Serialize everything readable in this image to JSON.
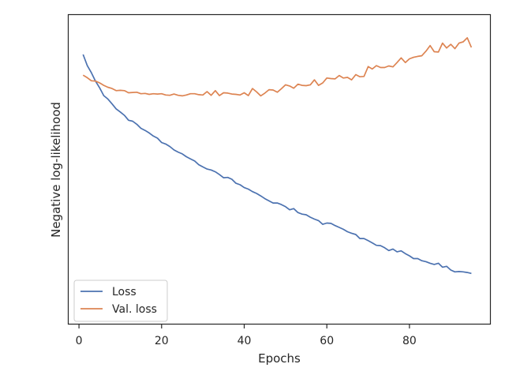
{
  "chart_data": {
    "type": "line",
    "title": "",
    "xlabel": "Epochs",
    "ylabel": "Negative log-likelihood",
    "xlim": [
      -2.5,
      99.5
    ],
    "ylim": [
      0,
      100
    ],
    "xticks": [
      0,
      20,
      40,
      60,
      80
    ],
    "yticks": [],
    "grid": false,
    "legend_position": "lower-left",
    "series": [
      {
        "name": "Loss",
        "color": "#4c72b0",
        "x": [
          1,
          2,
          3,
          4,
          5,
          6,
          7,
          8,
          9,
          10,
          11,
          12,
          13,
          14,
          15,
          16,
          17,
          18,
          19,
          20,
          21,
          22,
          23,
          24,
          25,
          26,
          27,
          28,
          29,
          30,
          31,
          32,
          33,
          34,
          35,
          36,
          37,
          38,
          39,
          40,
          41,
          42,
          43,
          44,
          45,
          46,
          47,
          48,
          49,
          50,
          51,
          52,
          53,
          54,
          55,
          56,
          57,
          58,
          59,
          60,
          61,
          62,
          63,
          64,
          65,
          66,
          67,
          68,
          69,
          70,
          71,
          72,
          73,
          74,
          75,
          76,
          77,
          78,
          79,
          80,
          81,
          82,
          83,
          84,
          85,
          86,
          87,
          88,
          89,
          90,
          91,
          92,
          93,
          94,
          95
        ],
        "values": [
          87.2,
          83.6,
          81.3,
          78.6,
          76.4,
          73.9,
          72.8,
          71.2,
          69.6,
          68.6,
          67.5,
          65.9,
          65.6,
          64.6,
          63.3,
          62.6,
          61.8,
          60.8,
          60.1,
          58.7,
          58.2,
          57.4,
          56.3,
          55.6,
          55.0,
          54.1,
          53.4,
          52.7,
          51.5,
          50.8,
          50.1,
          49.8,
          49.2,
          48.3,
          47.3,
          47.4,
          46.8,
          45.5,
          45.0,
          44.1,
          43.6,
          42.8,
          42.2,
          41.4,
          40.5,
          39.8,
          39.1,
          39.1,
          38.6,
          37.9,
          36.9,
          37.3,
          36.0,
          35.5,
          35.3,
          34.5,
          33.9,
          33.4,
          32.2,
          32.6,
          32.5,
          31.8,
          31.2,
          30.6,
          29.8,
          29.3,
          28.9,
          27.6,
          27.6,
          26.9,
          26.2,
          25.4,
          25.3,
          24.6,
          23.7,
          24.2,
          23.3,
          23.6,
          22.7,
          22.0,
          21.1,
          21.1,
          20.4,
          20.1,
          19.6,
          19.2,
          19.6,
          18.3,
          18.6,
          17.4,
          16.8,
          16.9,
          16.8,
          16.6,
          16.3
        ]
      },
      {
        "name": "Val. loss",
        "color": "#dd8452",
        "x": [
          1,
          2,
          3,
          4,
          5,
          6,
          7,
          8,
          9,
          10,
          11,
          12,
          13,
          14,
          15,
          16,
          17,
          18,
          19,
          20,
          21,
          22,
          23,
          24,
          25,
          26,
          27,
          28,
          29,
          30,
          31,
          32,
          33,
          34,
          35,
          36,
          37,
          38,
          39,
          40,
          41,
          42,
          43,
          44,
          45,
          46,
          47,
          48,
          49,
          50,
          51,
          52,
          53,
          54,
          55,
          56,
          57,
          58,
          59,
          60,
          61,
          62,
          63,
          64,
          65,
          66,
          67,
          68,
          69,
          70,
          71,
          72,
          73,
          74,
          75,
          76,
          77,
          78,
          79,
          80,
          81,
          82,
          83,
          84,
          85,
          86,
          87,
          88,
          89,
          90,
          91,
          92,
          93,
          94,
          95
        ],
        "values": [
          80.5,
          79.7,
          78.7,
          78.6,
          78.0,
          77.2,
          76.6,
          76.2,
          75.5,
          75.6,
          75.5,
          74.8,
          74.9,
          75.0,
          74.5,
          74.6,
          74.3,
          74.5,
          74.4,
          74.5,
          74.1,
          74.0,
          74.4,
          74.0,
          73.8,
          74.1,
          74.5,
          74.5,
          74.2,
          74.1,
          75.2,
          74.0,
          75.5,
          73.9,
          74.8,
          74.7,
          74.4,
          74.3,
          74.1,
          74.8,
          73.9,
          76.2,
          75.1,
          73.8,
          74.7,
          75.8,
          75.7,
          75.0,
          76.1,
          77.4,
          77.0,
          76.3,
          77.6,
          77.2,
          77.1,
          77.4,
          79.0,
          77.2,
          78.0,
          79.6,
          79.4,
          79.3,
          80.4,
          79.6,
          79.8,
          79.0,
          80.7,
          80.0,
          80.1,
          83.3,
          82.5,
          83.6,
          83.0,
          83.0,
          83.5,
          83.2,
          84.6,
          86.1,
          84.6,
          85.8,
          86.3,
          86.6,
          86.8,
          88.3,
          90.1,
          88.1,
          88.0,
          90.9,
          89.3,
          90.5,
          89.1,
          90.9,
          91.3,
          92.6,
          89.5
        ]
      }
    ]
  }
}
